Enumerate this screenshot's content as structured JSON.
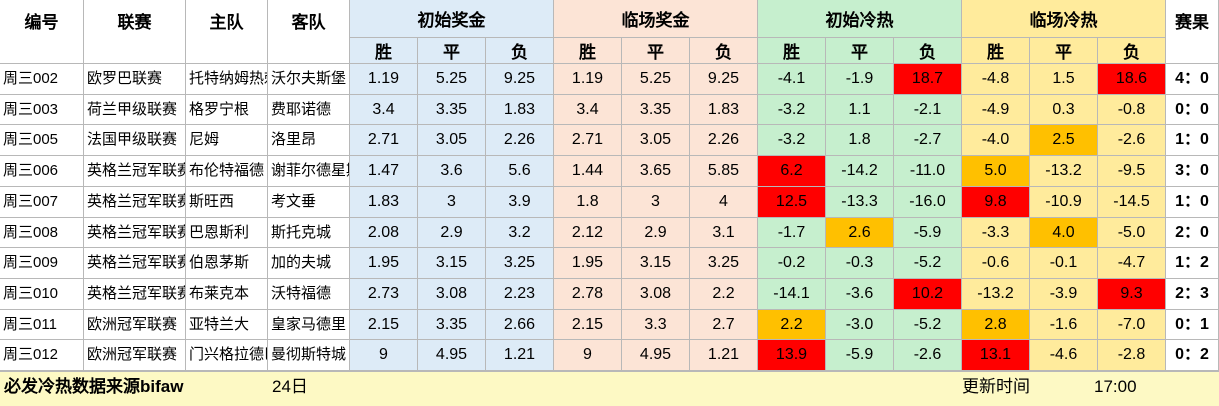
{
  "headers": {
    "id": "编号",
    "league": "联赛",
    "home": "主队",
    "away": "客队",
    "init_prize": "初始奖金",
    "final_prize": "临场奖金",
    "init_heat": "初始冷热",
    "final_heat": "临场冷热",
    "result": "赛果",
    "win": "胜",
    "draw": "平",
    "lose": "负"
  },
  "colors": {
    "init_prize_bg": "#ddebf7",
    "final_prize_bg": "#fce4d6",
    "init_heat_bg": "#c6efce",
    "final_heat_bg": "#ffeb9c",
    "hot_red": "#ff0000",
    "warm_orange": "#ffc000",
    "footer_bg": "#fdf9c4"
  },
  "rows": [
    {
      "id": "周三002",
      "league": "欧罗巴联赛",
      "home": "托特纳姆热刺",
      "away": "沃尔夫斯堡",
      "ip": [
        "1.19",
        "5.25",
        "9.25"
      ],
      "fp": [
        "1.19",
        "5.25",
        "9.25"
      ],
      "ih": [
        "-4.1",
        "-1.9",
        "18.7"
      ],
      "fh": [
        "-4.8",
        "1.5",
        "18.6"
      ],
      "ihc": [
        "",
        "",
        "red"
      ],
      "fhc": [
        "",
        "",
        "red"
      ],
      "result": "4：0"
    },
    {
      "id": "周三003",
      "league": "荷兰甲级联赛",
      "home": "格罗宁根",
      "away": "费耶诺德",
      "ip": [
        "3.4",
        "3.35",
        "1.83"
      ],
      "fp": [
        "3.4",
        "3.35",
        "1.83"
      ],
      "ih": [
        "-3.2",
        "1.1",
        "-2.1"
      ],
      "fh": [
        "-4.9",
        "0.3",
        "-0.8"
      ],
      "ihc": [
        "",
        "",
        ""
      ],
      "fhc": [
        "",
        "",
        ""
      ],
      "result": "0：0"
    },
    {
      "id": "周三005",
      "league": "法国甲级联赛",
      "home": "尼姆",
      "away": "洛里昂",
      "ip": [
        "2.71",
        "3.05",
        "2.26"
      ],
      "fp": [
        "2.71",
        "3.05",
        "2.26"
      ],
      "ih": [
        "-3.2",
        "1.8",
        "-2.7"
      ],
      "fh": [
        "-4.0",
        "2.5",
        "-2.6"
      ],
      "ihc": [
        "",
        "",
        ""
      ],
      "fhc": [
        "",
        "orange",
        ""
      ],
      "result": "1：0"
    },
    {
      "id": "周三006",
      "league": "英格兰冠军联赛",
      "home": "布伦特福德",
      "away": "谢菲尔德星期三",
      "ip": [
        "1.47",
        "3.6",
        "5.6"
      ],
      "fp": [
        "1.44",
        "3.65",
        "5.85"
      ],
      "ih": [
        "6.2",
        "-14.2",
        "-11.0"
      ],
      "fh": [
        "5.0",
        "-13.2",
        "-9.5"
      ],
      "ihc": [
        "red",
        "",
        ""
      ],
      "fhc": [
        "orange",
        "",
        ""
      ],
      "result": "3：0"
    },
    {
      "id": "周三007",
      "league": "英格兰冠军联赛",
      "home": "斯旺西",
      "away": "考文垂",
      "ip": [
        "1.83",
        "3",
        "3.9"
      ],
      "fp": [
        "1.8",
        "3",
        "4"
      ],
      "ih": [
        "12.5",
        "-13.3",
        "-16.0"
      ],
      "fh": [
        "9.8",
        "-10.9",
        "-14.5"
      ],
      "ihc": [
        "red",
        "",
        ""
      ],
      "fhc": [
        "red",
        "",
        ""
      ],
      "result": "1：0"
    },
    {
      "id": "周三008",
      "league": "英格兰冠军联赛",
      "home": "巴恩斯利",
      "away": "斯托克城",
      "ip": [
        "2.08",
        "2.9",
        "3.2"
      ],
      "fp": [
        "2.12",
        "2.9",
        "3.1"
      ],
      "ih": [
        "-1.7",
        "2.6",
        "-5.9"
      ],
      "fh": [
        "-3.3",
        "4.0",
        "-5.0"
      ],
      "ihc": [
        "",
        "orange",
        ""
      ],
      "fhc": [
        "",
        "orange",
        ""
      ],
      "result": "2：0"
    },
    {
      "id": "周三009",
      "league": "英格兰冠军联赛",
      "home": "伯恩茅斯",
      "away": "加的夫城",
      "ip": [
        "1.95",
        "3.15",
        "3.25"
      ],
      "fp": [
        "1.95",
        "3.15",
        "3.25"
      ],
      "ih": [
        "-0.2",
        "-0.3",
        "-5.2"
      ],
      "fh": [
        "-0.6",
        "-0.1",
        "-4.7"
      ],
      "ihc": [
        "",
        "",
        ""
      ],
      "fhc": [
        "",
        "",
        ""
      ],
      "result": "1：2"
    },
    {
      "id": "周三010",
      "league": "英格兰冠军联赛",
      "home": "布莱克本",
      "away": "沃特福德",
      "ip": [
        "2.73",
        "3.08",
        "2.23"
      ],
      "fp": [
        "2.78",
        "3.08",
        "2.2"
      ],
      "ih": [
        "-14.1",
        "-3.6",
        "10.2"
      ],
      "fh": [
        "-13.2",
        "-3.9",
        "9.3"
      ],
      "ihc": [
        "",
        "",
        "red"
      ],
      "fhc": [
        "",
        "",
        "red"
      ],
      "result": "2：3"
    },
    {
      "id": "周三011",
      "league": "欧洲冠军联赛",
      "home": "亚特兰大",
      "away": "皇家马德里",
      "ip": [
        "2.15",
        "3.35",
        "2.66"
      ],
      "fp": [
        "2.15",
        "3.3",
        "2.7"
      ],
      "ih": [
        "2.2",
        "-3.0",
        "-5.2"
      ],
      "fh": [
        "2.8",
        "-1.6",
        "-7.0"
      ],
      "ihc": [
        "orange",
        "",
        ""
      ],
      "fhc": [
        "orange",
        "",
        ""
      ],
      "result": "0：1"
    },
    {
      "id": "周三012",
      "league": "欧洲冠军联赛",
      "home": "门兴格拉德巴赫",
      "away": "曼彻斯特城",
      "ip": [
        "9",
        "4.95",
        "1.21"
      ],
      "fp": [
        "9",
        "4.95",
        "1.21"
      ],
      "ih": [
        "13.9",
        "-5.9",
        "-2.6"
      ],
      "fh": [
        "13.1",
        "-4.6",
        "-2.8"
      ],
      "ihc": [
        "red",
        "",
        ""
      ],
      "fhc": [
        "red",
        "",
        ""
      ],
      "result": "0：2"
    }
  ],
  "footer": {
    "source": "必发冷热数据来源bifaw",
    "date": "24日",
    "update_label": "更新时间",
    "update_time": "17:00"
  }
}
